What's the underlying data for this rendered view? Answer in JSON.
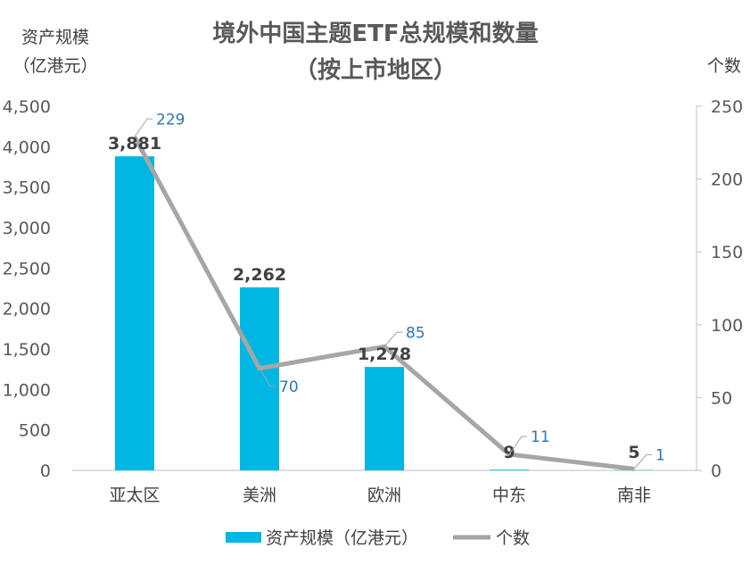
{
  "chart_data": {
    "type": "bar",
    "title": "境外中国主题ETF总规模和数量",
    "subtitle": "（按上市地区）",
    "categories": [
      "亚太区",
      "美洲",
      "欧洲",
      "中东",
      "南非"
    ],
    "left_axis": {
      "label_line1": "资产规模",
      "label_line2": "（亿港元）",
      "ylim": [
        0,
        4500
      ],
      "ticks": [
        "0",
        "500",
        "1,000",
        "1,500",
        "2,000",
        "2,500",
        "3,000",
        "3,500",
        "4,000",
        "4,500"
      ]
    },
    "right_axis": {
      "label": "个数",
      "ylim": [
        0,
        250
      ],
      "ticks": [
        "0",
        "50",
        "100",
        "150",
        "200",
        "250"
      ]
    },
    "series": [
      {
        "name": "资产规模（亿港元）",
        "type": "bar",
        "color": "#00b7e3",
        "values": [
          3881,
          2262,
          1278,
          9,
          5
        ],
        "labels": [
          "3,881",
          "2,262",
          "1,278",
          "9",
          "5"
        ]
      },
      {
        "name": "个数",
        "type": "line",
        "color": "#a6a6a6",
        "values": [
          229,
          70,
          85,
          11,
          1
        ],
        "labels": [
          "229",
          "70",
          "85",
          "11",
          "1"
        ]
      }
    ],
    "legend_position": "bottom"
  }
}
